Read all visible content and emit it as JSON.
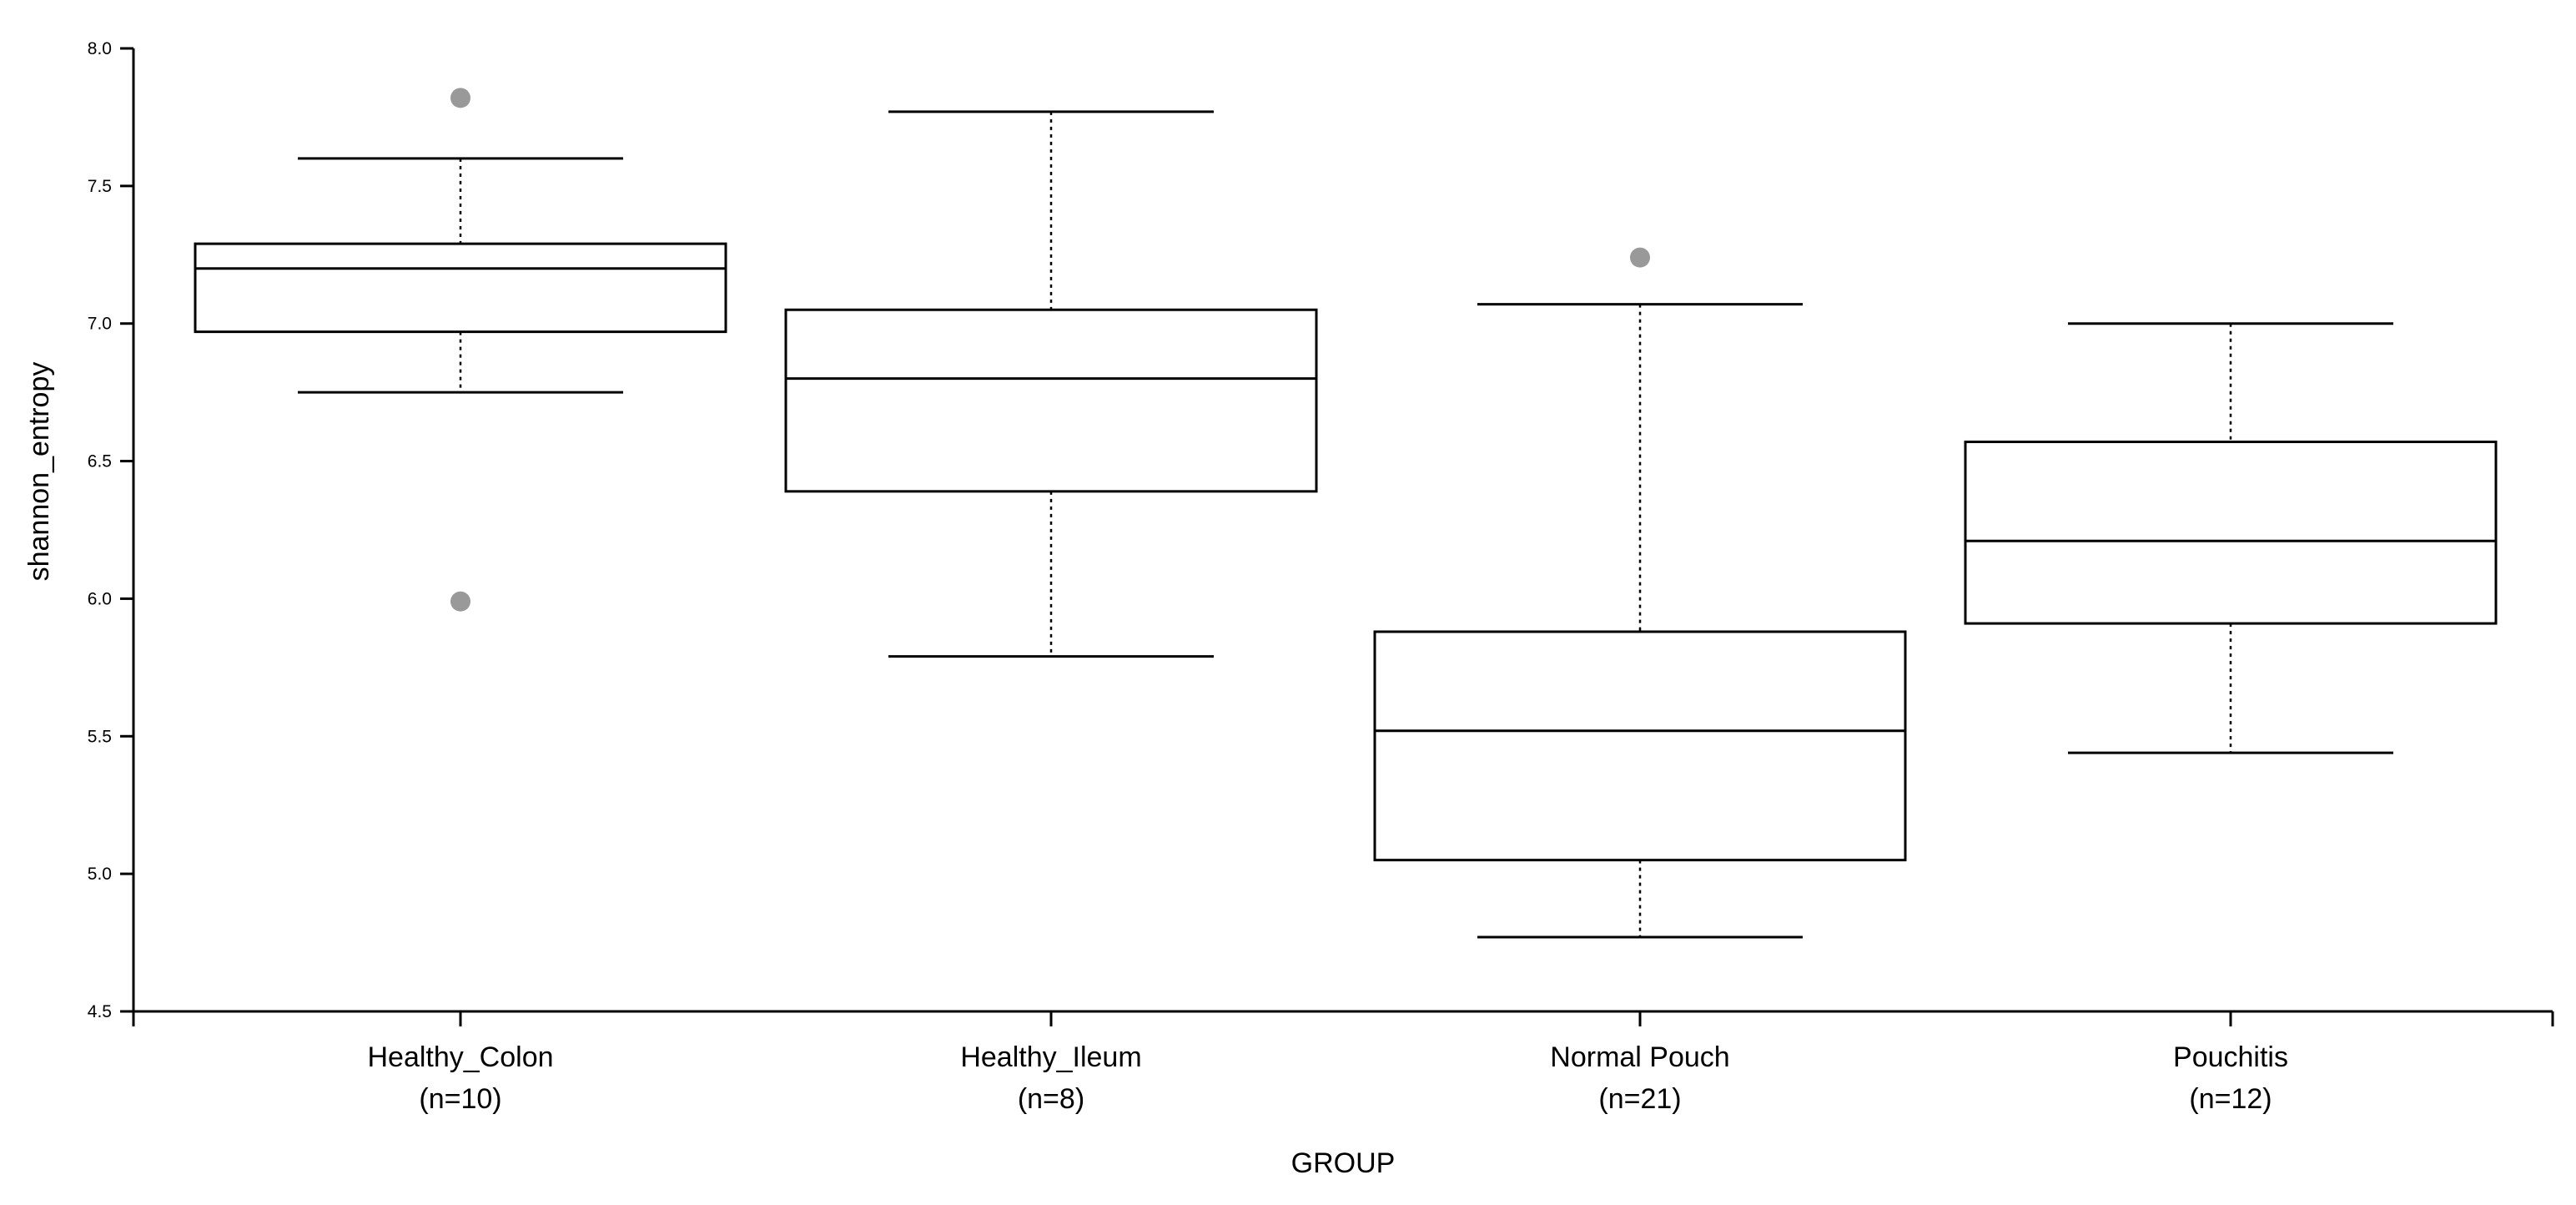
{
  "chart_data": {
    "type": "box",
    "xlabel": "GROUP",
    "ylabel": "shannon_entropy",
    "ylim": [
      4.5,
      8.0
    ],
    "yticks": [
      "4.5",
      "5.0",
      "5.5",
      "6.0",
      "6.5",
      "7.0",
      "7.5",
      "8.0"
    ],
    "categories": [
      {
        "name": "Healthy_Colon",
        "n_label": "(n=10)",
        "whisker_low": 6.75,
        "q1": 6.97,
        "median": 7.2,
        "q3": 7.29,
        "whisker_high": 7.6,
        "outliers": [
          7.82,
          5.99
        ]
      },
      {
        "name": "Healthy_Ileum",
        "n_label": "(n=8)",
        "whisker_low": 5.79,
        "q1": 6.39,
        "median": 6.8,
        "q3": 7.05,
        "whisker_high": 7.77,
        "outliers": []
      },
      {
        "name": "Normal Pouch",
        "n_label": "(n=21)",
        "whisker_low": 4.77,
        "q1": 5.05,
        "median": 5.52,
        "q3": 5.88,
        "whisker_high": 7.07,
        "outliers": [
          7.24
        ]
      },
      {
        "name": "Pouchitis",
        "n_label": "(n=12)",
        "whisker_low": 5.44,
        "q1": 5.91,
        "median": 6.21,
        "q3": 6.57,
        "whisker_high": 7.0,
        "outliers": []
      }
    ],
    "colors": {
      "box_fill": "#ffffff",
      "line": "#000000",
      "outlier": "#999999"
    }
  }
}
